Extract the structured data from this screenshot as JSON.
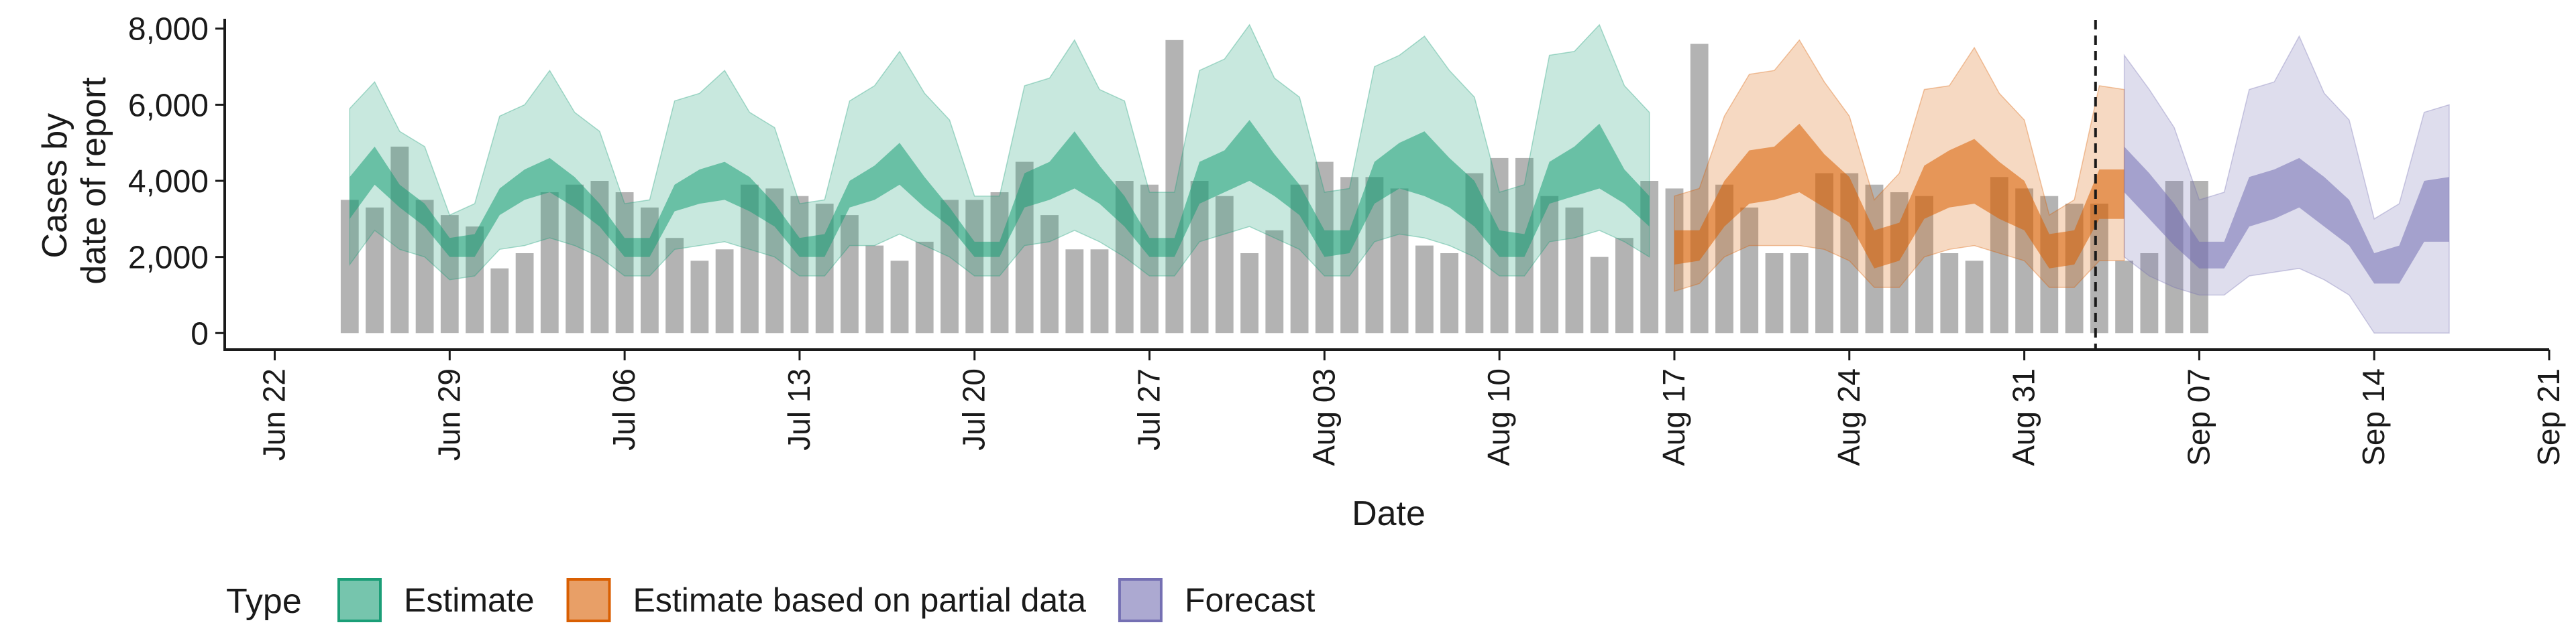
{
  "chart_data": {
    "type": "area",
    "xlabel": "Date",
    "ylabel_lines": [
      "Cases by",
      "date of report"
    ],
    "x_tick_labels": [
      {
        "date": "2020-06-22",
        "label": "Jun 22"
      },
      {
        "date": "2020-06-29",
        "label": "Jun 29"
      },
      {
        "date": "2020-07-06",
        "label": "Jul 06"
      },
      {
        "date": "2020-07-13",
        "label": "Jul 13"
      },
      {
        "date": "2020-07-20",
        "label": "Jul 20"
      },
      {
        "date": "2020-07-27",
        "label": "Jul 27"
      },
      {
        "date": "2020-08-03",
        "label": "Aug 03"
      },
      {
        "date": "2020-08-10",
        "label": "Aug 10"
      },
      {
        "date": "2020-08-17",
        "label": "Aug 17"
      },
      {
        "date": "2020-08-24",
        "label": "Aug 24"
      },
      {
        "date": "2020-08-31",
        "label": "Aug 31"
      },
      {
        "date": "2020-09-07",
        "label": "Sep 07"
      },
      {
        "date": "2020-09-14",
        "label": "Sep 14"
      },
      {
        "date": "2020-09-21",
        "label": "Sep 21"
      }
    ],
    "y_ticks": [
      0,
      2000,
      4000,
      6000,
      8000
    ],
    "y_tick_labels": [
      "0",
      "2,000",
      "4,000",
      "6,000",
      "8,000"
    ],
    "xlim": [
      "2020-06-20",
      "2020-09-21"
    ],
    "ylim": [
      -400,
      8400
    ],
    "forecast_start": "2020-09-03",
    "legend": {
      "title": "Type",
      "position": "bottom",
      "entries": [
        {
          "name": "Estimate",
          "color": "#1b9e77"
        },
        {
          "name": "Estimate based on partial data",
          "color": "#d95f02"
        },
        {
          "name": "Forecast",
          "color": "#7570b3"
        }
      ]
    },
    "bar_color": "#b3b3b3",
    "bars": {
      "start_date": "2020-06-25",
      "values": [
        3500,
        3300,
        4900,
        3500,
        3100,
        2800,
        1700,
        2100,
        3700,
        3900,
        4000,
        3700,
        3300,
        2500,
        1900,
        2200,
        3900,
        3800,
        3600,
        3400,
        3100,
        2300,
        1900,
        2400,
        3500,
        3500,
        3700,
        4500,
        3100,
        2200,
        2200,
        4000,
        3900,
        7700,
        4000,
        3600,
        2100,
        2700,
        3900,
        4500,
        4100,
        4100,
        3800,
        2300,
        2100,
        4200,
        4600,
        4600,
        3600,
        3300,
        2000,
        2500,
        4000,
        3800,
        7600,
        3900,
        3300,
        2100,
        2100,
        4200,
        4200,
        3900,
        3700,
        3600,
        2100,
        1900,
        4100,
        3800,
        3600,
        3400,
        3400,
        1900,
        2100,
        4000,
        4000
      ]
    },
    "series": [
      {
        "name": "Estimate",
        "start_date": "2020-06-25",
        "median": [
          2900,
          4500,
          3400,
          3000,
          2200,
          2200,
          3300,
          3600,
          4000,
          3600,
          3000,
          2200,
          2200,
          3400,
          3600,
          3900,
          3500,
          3000,
          2200,
          2200,
          3500,
          3700,
          4300,
          3600,
          2800,
          2200,
          2200,
          3600,
          3800,
          4500,
          3700,
          2900,
          2200,
          2200,
          3800,
          4200,
          4800,
          3900,
          3200,
          2500,
          2300,
          3900,
          4300,
          4400,
          3800,
          3300,
          2400,
          2300,
          3800,
          4200,
          4800,
          3600,
          2900
        ],
        "inner_lo": [
          3000,
          3900,
          3300,
          2800,
          2000,
          2000,
          3100,
          3500,
          3700,
          3300,
          2800,
          2000,
          2000,
          3200,
          3400,
          3500,
          3200,
          2800,
          2000,
          2000,
          3300,
          3500,
          3900,
          3300,
          2800,
          2000,
          2000,
          3300,
          3500,
          3800,
          3400,
          2800,
          2000,
          2000,
          3400,
          3700,
          4000,
          3600,
          3100,
          2000,
          2100,
          3400,
          3800,
          3600,
          3300,
          2800,
          2000,
          2000,
          3400,
          3600,
          3800,
          3400,
          2800
        ],
        "inner_hi": [
          4100,
          4900,
          3900,
          3400,
          2500,
          2600,
          3800,
          4300,
          4600,
          4100,
          3400,
          2500,
          2500,
          3900,
          4300,
          4500,
          4100,
          3400,
          2500,
          2600,
          4000,
          4400,
          5000,
          4100,
          3300,
          2400,
          2400,
          4200,
          4500,
          5300,
          4400,
          3600,
          2500,
          2500,
          4500,
          4800,
          5600,
          4700,
          3900,
          2700,
          2700,
          4500,
          5000,
          5300,
          4600,
          4000,
          2700,
          2600,
          4500,
          4900,
          5500,
          4300,
          3600
        ],
        "lo": [
          1800,
          2700,
          2200,
          2000,
          1400,
          1500,
          2200,
          2300,
          2500,
          2300,
          2000,
          1500,
          1500,
          2200,
          2300,
          2400,
          2200,
          2000,
          1500,
          1500,
          2300,
          2300,
          2600,
          2300,
          2000,
          1500,
          1500,
          2300,
          2400,
          2700,
          2400,
          2000,
          1500,
          1500,
          2400,
          2600,
          2800,
          2500,
          2200,
          1500,
          1500,
          2400,
          2600,
          2500,
          2300,
          2000,
          1500,
          1500,
          2400,
          2500,
          2700,
          2400,
          2000
        ],
        "hi": [
          5900,
          6600,
          5300,
          4900,
          3100,
          3400,
          5700,
          6000,
          6900,
          5800,
          5300,
          3400,
          3500,
          6100,
          6300,
          6900,
          5800,
          5400,
          3400,
          3500,
          6100,
          6500,
          7400,
          6300,
          5600,
          3600,
          3600,
          6500,
          6700,
          7700,
          6400,
          6100,
          3700,
          3700,
          6900,
          7200,
          8100,
          6700,
          6200,
          3700,
          3800,
          7000,
          7300,
          7800,
          6900,
          6200,
          3700,
          3900,
          7300,
          7400,
          8100,
          6500,
          5800
        ]
      },
      {
        "name": "Estimate based on partial data",
        "start_date": "2020-08-17",
        "median": [
          2300,
          2300,
          3300,
          4400,
          4300,
          4600,
          3700,
          3300,
          2100,
          2300,
          3900,
          4200,
          4400,
          3900,
          3500,
          2200,
          2300,
          3800,
          3800
        ],
        "inner_lo": [
          1800,
          1900,
          2800,
          3400,
          3500,
          3700,
          3300,
          2900,
          1700,
          1900,
          3000,
          3300,
          3400,
          3000,
          2700,
          1700,
          1800,
          3000,
          3000
        ],
        "inner_hi": [
          2700,
          2700,
          4000,
          4800,
          4900,
          5500,
          4700,
          4100,
          2700,
          2900,
          4400,
          4800,
          5100,
          4500,
          4000,
          2600,
          2700,
          4300,
          4300
        ],
        "lo": [
          1100,
          1300,
          2000,
          2300,
          2300,
          2300,
          2200,
          1900,
          1200,
          1200,
          2000,
          2200,
          2300,
          2100,
          1900,
          1200,
          1200,
          1900,
          1900
        ],
        "hi": [
          3600,
          3800,
          5700,
          6800,
          6900,
          7700,
          6600,
          5700,
          3500,
          4200,
          6400,
          6500,
          7500,
          6300,
          5600,
          3100,
          3500,
          6500,
          6400
        ]
      },
      {
        "name": "Forecast",
        "start_date": "2020-09-04",
        "median": [
          4400,
          3700,
          3000,
          2200,
          2200,
          3500,
          3800,
          4100,
          3600,
          3000,
          1900,
          2000,
          3500,
          3600
        ],
        "inner_lo": [
          3700,
          3000,
          2300,
          1700,
          1700,
          2800,
          3000,
          3300,
          2800,
          2300,
          1300,
          1300,
          2400,
          2400
        ],
        "inner_hi": [
          4900,
          4200,
          3400,
          2400,
          2400,
          4100,
          4300,
          4600,
          4100,
          3500,
          2100,
          2300,
          4000,
          4100
        ],
        "lo": [
          2000,
          1500,
          1200,
          1000,
          1000,
          1500,
          1600,
          1700,
          1400,
          1000,
          0,
          0,
          0,
          0
        ],
        "hi": [
          7300,
          6400,
          5400,
          3500,
          3700,
          6400,
          6600,
          7800,
          6300,
          5600,
          3000,
          3400,
          5800,
          6000
        ]
      }
    ]
  }
}
